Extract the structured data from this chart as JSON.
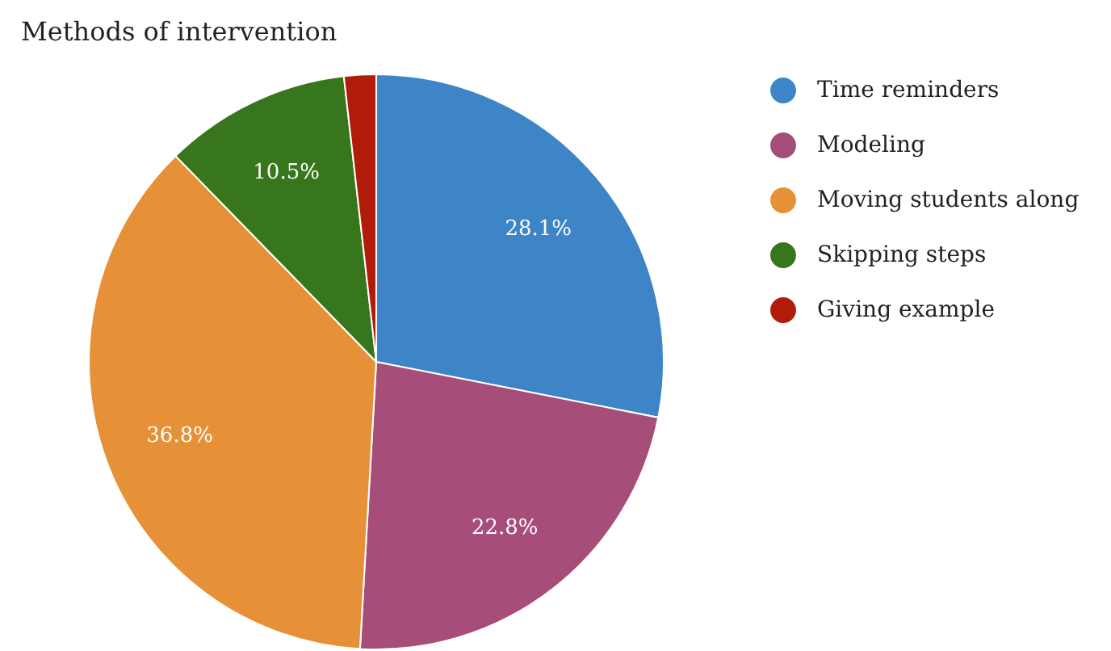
{
  "chart_data": {
    "type": "pie",
    "title": "Methods of intervention",
    "categories": [
      "Time reminders",
      "Modeling",
      "Moving students along",
      "Skipping steps",
      "Giving example"
    ],
    "values": [
      28.1,
      22.8,
      36.8,
      10.5,
      1.8
    ],
    "colors": [
      "#3d85c6",
      "#a64d79",
      "#e69138",
      "#38761d",
      "#b11c0a"
    ],
    "value_labels": [
      "28.1%",
      "22.8%",
      "36.8%",
      "10.5%",
      null
    ],
    "legend": "right"
  }
}
